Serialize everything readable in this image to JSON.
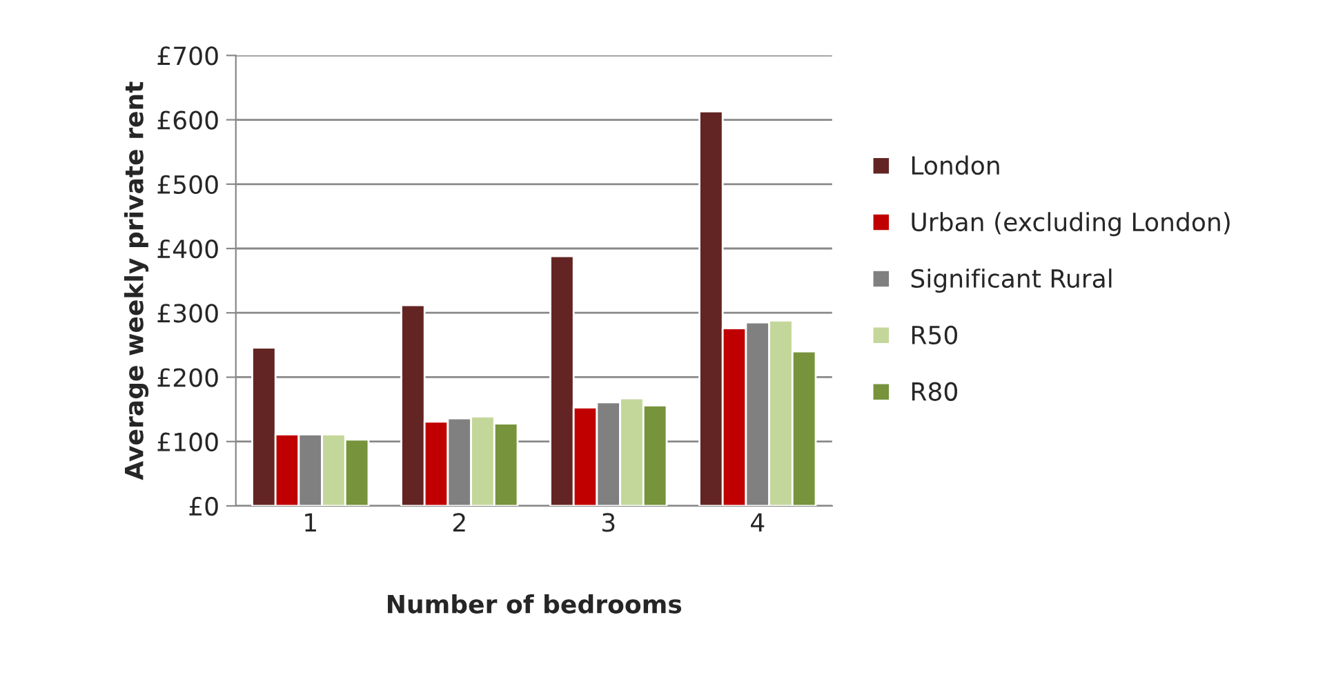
{
  "chart_data": {
    "type": "bar",
    "xlabel": "Number of bedrooms",
    "ylabel": "Average weekly private rent",
    "categories": [
      "1",
      "2",
      "3",
      "4"
    ],
    "series": [
      {
        "name": "London",
        "color": "#632523",
        "values": [
          246,
          312,
          388,
          613
        ]
      },
      {
        "name": "Urban (excluding London)",
        "color": "#c00000",
        "values": [
          111,
          131,
          153,
          276
        ]
      },
      {
        "name": "Significant Rural",
        "color": "#808080",
        "values": [
          111,
          136,
          161,
          285
        ]
      },
      {
        "name": "R50",
        "color": "#c4d79b",
        "values": [
          111,
          139,
          167,
          288
        ]
      },
      {
        "name": "R80",
        "color": "#77933c",
        "values": [
          103,
          128,
          156,
          240
        ]
      }
    ],
    "ylim": [
      0,
      700
    ],
    "yticks": [
      {
        "value": 0,
        "label": "£0"
      },
      {
        "value": 100,
        "label": "£100"
      },
      {
        "value": 200,
        "label": "£200"
      },
      {
        "value": 300,
        "label": "£300"
      },
      {
        "value": 400,
        "label": "£400"
      },
      {
        "value": 500,
        "label": "£500"
      },
      {
        "value": 600,
        "label": "£600"
      },
      {
        "value": 700,
        "label": "£700"
      }
    ],
    "grid": "y",
    "legend": "right"
  }
}
